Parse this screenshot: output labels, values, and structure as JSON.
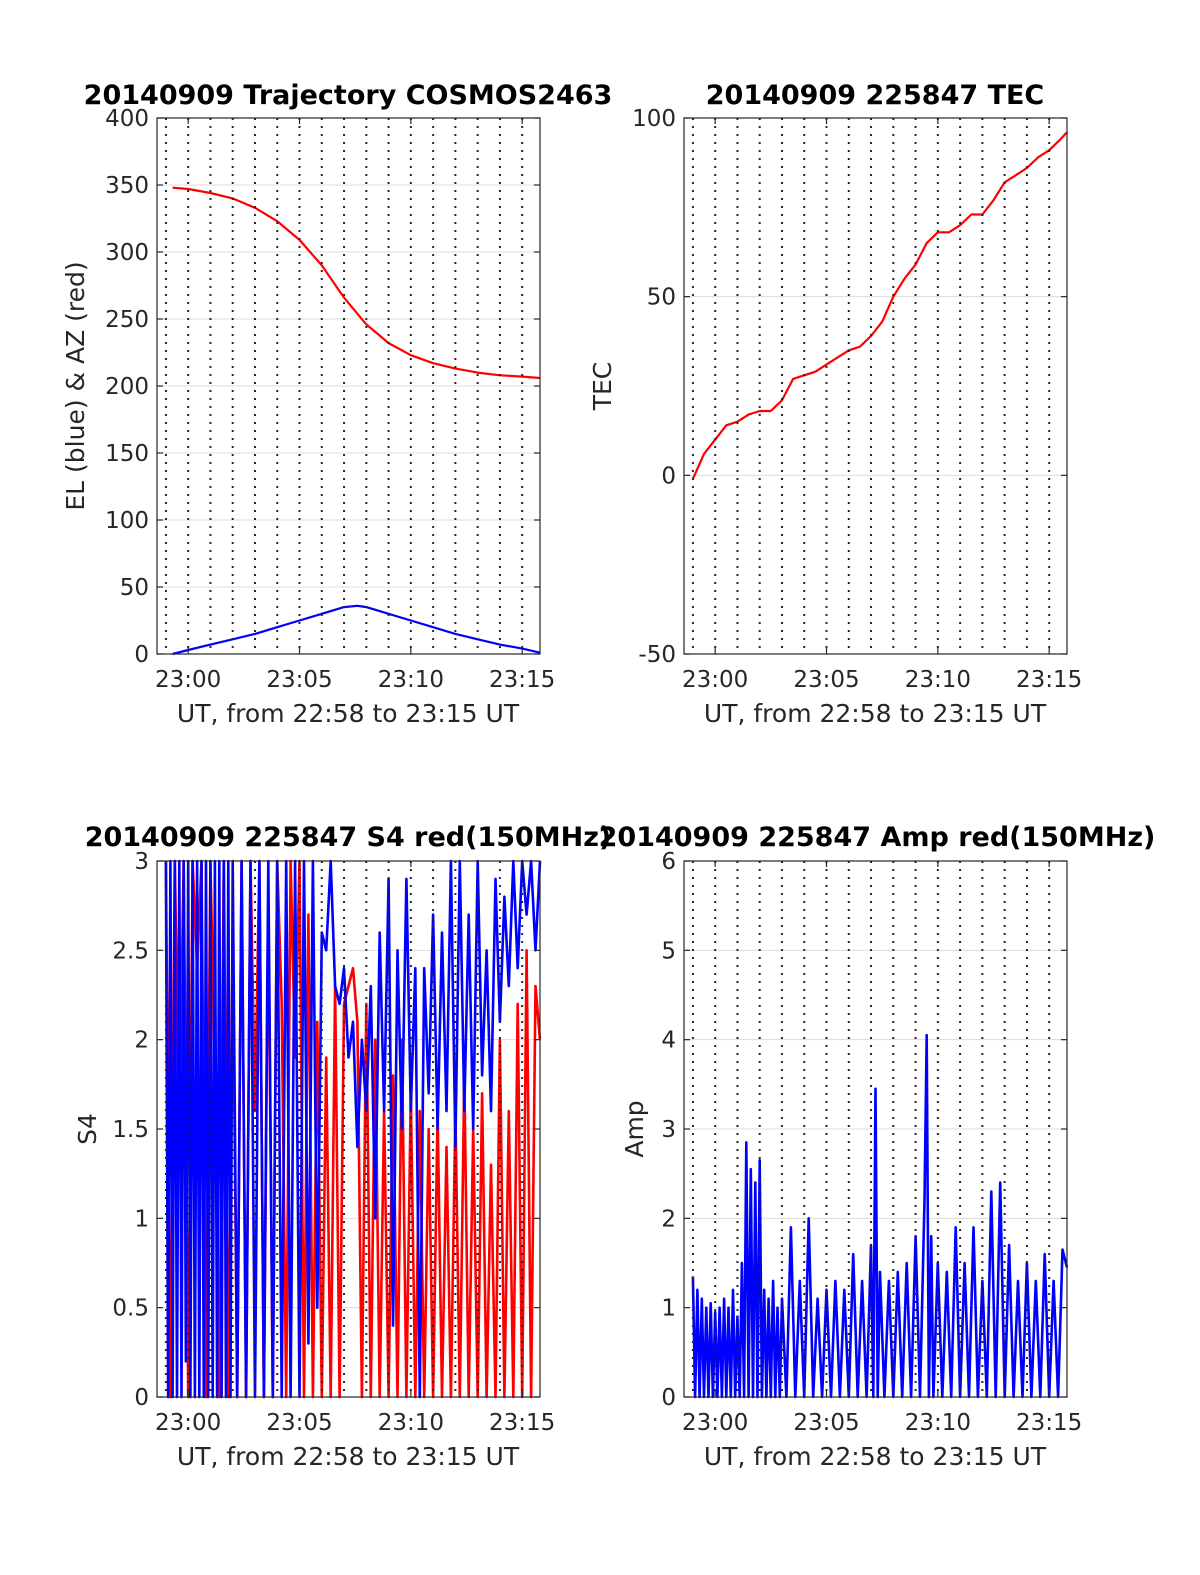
{
  "chart_data": [
    {
      "id": "p1",
      "type": "line",
      "title": "20140909 Trajectory COSMOS2463",
      "xlabel": "UT, from 22:58 to 23:15 UT",
      "ylabel": "EL (blue) & AZ (red)",
      "xlim_minutes": [
        -1.4,
        15.8
      ],
      "ylim": [
        0,
        400
      ],
      "x_tick_minutes": [
        0,
        5,
        10,
        15
      ],
      "x_tick_labels": [
        "23:00",
        "23:05",
        "23:10",
        "23:15"
      ],
      "y_ticks": [
        0,
        50,
        100,
        150,
        200,
        250,
        300,
        350,
        400
      ],
      "grid": true,
      "series": [
        {
          "color": "#ff0000",
          "x_minutes": [
            -0.7,
            0,
            1,
            2,
            3,
            4,
            5,
            6,
            7,
            8,
            9,
            10,
            11,
            12,
            13,
            14,
            15,
            15.8
          ],
          "values": [
            348,
            347,
            344,
            340,
            333,
            323,
            309,
            290,
            266,
            246,
            232,
            223,
            217,
            213,
            210,
            208,
            207,
            206
          ]
        },
        {
          "color": "#0000ff",
          "x_minutes": [
            -0.7,
            0,
            1,
            2,
            3,
            4,
            5,
            6,
            7,
            7.6,
            8,
            9,
            10,
            11,
            12,
            13,
            14,
            15,
            15.8
          ],
          "values": [
            0,
            3,
            7,
            11,
            15,
            20,
            25,
            30,
            35,
            36,
            35,
            30,
            25,
            20,
            15,
            11,
            7,
            4,
            1
          ]
        }
      ]
    },
    {
      "id": "p2",
      "type": "line",
      "title": "20140909 225847 TEC",
      "xlabel": "UT, from 22:58 to 23:15 UT",
      "ylabel": "TEC",
      "xlim_minutes": [
        -1.4,
        15.8
      ],
      "ylim": [
        -50,
        100
      ],
      "x_tick_minutes": [
        0,
        5,
        10,
        15
      ],
      "x_tick_labels": [
        "23:00",
        "23:05",
        "23:10",
        "23:15"
      ],
      "y_ticks": [
        -50,
        0,
        50,
        100
      ],
      "grid": true,
      "series": [
        {
          "color": "#ff0000",
          "x_minutes": [
            -1.0,
            -0.5,
            0,
            0.5,
            1,
            1.5,
            2,
            2.5,
            3,
            3.5,
            4,
            4.5,
            5,
            5.5,
            6,
            6.5,
            7,
            7.5,
            8,
            8.5,
            9,
            9.5,
            10,
            10.5,
            11,
            11.5,
            12,
            12.5,
            13,
            13.5,
            14,
            14.5,
            15,
            15.5,
            15.8
          ],
          "values": [
            -1,
            6,
            10,
            14,
            15,
            17,
            18,
            18,
            21,
            27,
            28,
            29,
            31,
            33,
            35,
            36,
            39,
            43,
            50,
            55,
            59,
            65,
            68,
            68,
            70,
            73,
            73,
            77,
            82,
            84,
            86,
            89,
            91,
            94,
            96
          ]
        }
      ]
    },
    {
      "id": "p3",
      "type": "line",
      "title": "20140909 225847 S4 red(150MHz)",
      "xlabel": "UT, from 22:58 to 23:15 UT",
      "ylabel": "S4",
      "xlim_minutes": [
        -1.4,
        15.8
      ],
      "ylim": [
        0,
        3
      ],
      "x_tick_minutes": [
        0,
        5,
        10,
        15
      ],
      "x_tick_labels": [
        "23:00",
        "23:05",
        "23:10",
        "23:15"
      ],
      "y_ticks": [
        0,
        0.5,
        1,
        1.5,
        2,
        2.5,
        3
      ],
      "grid": true,
      "series": [
        {
          "color": "#ff0000",
          "x_minutes": [
            -1.0,
            -0.8,
            -0.6,
            -0.4,
            -0.2,
            0.0,
            0.2,
            0.4,
            0.6,
            0.8,
            1.0,
            1.2,
            1.4,
            1.6,
            1.8,
            2.0,
            2.2,
            2.4,
            2.6,
            2.8,
            3.0,
            3.2,
            3.4,
            3.6,
            3.8,
            4.0,
            4.2,
            4.4,
            4.6,
            4.8,
            5.0,
            5.2,
            5.4,
            5.6,
            5.8,
            6.0,
            6.2,
            6.4,
            6.6,
            6.8,
            7.0,
            7.2,
            7.4,
            7.6,
            7.8,
            8.0,
            8.2,
            8.4,
            8.6,
            8.8,
            9.0,
            9.2,
            9.4,
            9.6,
            9.8,
            10.0,
            10.2,
            10.4,
            10.6,
            10.8,
            11.0,
            11.2,
            11.4,
            11.6,
            11.8,
            12.0,
            12.2,
            12.4,
            12.6,
            12.8,
            13.0,
            13.2,
            13.4,
            13.6,
            13.8,
            14.0,
            14.2,
            14.4,
            14.6,
            14.8,
            15.0,
            15.2,
            15.4,
            15.6,
            15.8
          ],
          "values": [
            3.0,
            0.0,
            3.0,
            1.5,
            3.0,
            0.0,
            3.0,
            2.4,
            3.0,
            0.0,
            3.0,
            1.8,
            0.0,
            3.0,
            0.0,
            2.6,
            0.0,
            3.0,
            0.0,
            3.0,
            1.6,
            3.0,
            0.0,
            2.8,
            0.0,
            3.0,
            2.2,
            0.0,
            3.0,
            1.9,
            3.0,
            0.0,
            2.7,
            0.0,
            2.1,
            0.0,
            1.9,
            0.0,
            2.3,
            0.0,
            2.2,
            2.3,
            2.4,
            2.1,
            0.0,
            2.2,
            0.0,
            2.0,
            0.0,
            1.6,
            0.0,
            1.8,
            0.0,
            2.0,
            0.0,
            1.7,
            0.0,
            1.6,
            0.0,
            1.5,
            0.0,
            1.6,
            0.0,
            1.4,
            0.0,
            1.6,
            0.0,
            1.8,
            0.0,
            1.5,
            0.0,
            1.7,
            0.0,
            1.3,
            0.0,
            2.0,
            0.0,
            1.6,
            0.0,
            2.2,
            0.0,
            2.5,
            0.0,
            2.3,
            2.0
          ]
        },
        {
          "color": "#0000ff",
          "x_minutes": [
            -1.0,
            -0.9,
            -0.8,
            -0.7,
            -0.6,
            -0.5,
            -0.4,
            -0.3,
            -0.2,
            -0.1,
            0.0,
            0.1,
            0.2,
            0.3,
            0.4,
            0.5,
            0.6,
            0.7,
            0.8,
            0.9,
            1.0,
            1.1,
            1.2,
            1.3,
            1.4,
            1.5,
            1.6,
            1.7,
            1.8,
            1.9,
            2.0,
            2.2,
            2.4,
            2.6,
            2.8,
            3.0,
            3.2,
            3.4,
            3.6,
            3.8,
            4.0,
            4.2,
            4.4,
            4.6,
            4.8,
            5.0,
            5.2,
            5.4,
            5.6,
            5.8,
            6.0,
            6.2,
            6.4,
            6.6,
            6.8,
            7.0,
            7.2,
            7.4,
            7.6,
            7.8,
            8.0,
            8.2,
            8.4,
            8.6,
            8.8,
            9.0,
            9.2,
            9.4,
            9.6,
            9.8,
            10.0,
            10.2,
            10.4,
            10.6,
            10.8,
            11.0,
            11.2,
            11.4,
            11.6,
            11.8,
            12.0,
            12.2,
            12.4,
            12.6,
            12.8,
            13.0,
            13.2,
            13.4,
            13.6,
            13.8,
            14.0,
            14.2,
            14.4,
            14.6,
            14.8,
            15.0,
            15.2,
            15.4,
            15.6,
            15.8
          ],
          "values": [
            3.0,
            0.0,
            3.0,
            0.0,
            3.0,
            0.0,
            3.0,
            0.0,
            3.0,
            0.2,
            3.0,
            0.0,
            3.0,
            0.0,
            3.0,
            0.0,
            3.0,
            0.0,
            3.0,
            0.0,
            3.0,
            0.0,
            3.0,
            0.0,
            3.0,
            0.0,
            3.0,
            0.0,
            3.0,
            0.0,
            3.0,
            0.0,
            3.0,
            0.0,
            3.0,
            0.0,
            3.0,
            0.0,
            3.0,
            0.0,
            3.0,
            0.0,
            3.0,
            0.0,
            3.0,
            0.0,
            3.0,
            0.3,
            3.0,
            0.5,
            2.6,
            2.5,
            3.0,
            2.3,
            2.2,
            2.4,
            1.9,
            2.1,
            1.4,
            2.0,
            1.6,
            2.3,
            1.0,
            2.6,
            1.6,
            2.9,
            0.4,
            2.5,
            1.5,
            2.9,
            1.6,
            2.4,
            0.0,
            2.4,
            1.7,
            2.7,
            1.5,
            2.6,
            1.6,
            3.0,
            1.4,
            3.0,
            1.6,
            2.7,
            1.5,
            3.0,
            1.8,
            2.5,
            1.6,
            2.9,
            2.1,
            2.8,
            2.3,
            3.0,
            2.4,
            3.0,
            2.7,
            3.0,
            2.5,
            3.0
          ]
        }
      ]
    },
    {
      "id": "p4",
      "type": "line",
      "title": "20140909 225847 Amp red(150MHz)",
      "xlabel": "UT, from 22:58 to 23:15 UT",
      "ylabel": "Amp",
      "xlim_minutes": [
        -1.4,
        15.8
      ],
      "ylim": [
        0,
        6
      ],
      "x_tick_minutes": [
        0,
        5,
        10,
        15
      ],
      "x_tick_labels": [
        "23:00",
        "23:05",
        "23:10",
        "23:15"
      ],
      "y_ticks": [
        0,
        1,
        2,
        3,
        4,
        5,
        6
      ],
      "grid": true,
      "series": [
        {
          "color": "#0000ff",
          "x_minutes": [
            -1.0,
            -0.9,
            -0.8,
            -0.7,
            -0.6,
            -0.5,
            -0.4,
            -0.3,
            -0.2,
            -0.1,
            0.0,
            0.1,
            0.2,
            0.3,
            0.4,
            0.5,
            0.6,
            0.7,
            0.8,
            0.9,
            1.0,
            1.1,
            1.2,
            1.3,
            1.4,
            1.5,
            1.6,
            1.7,
            1.8,
            1.9,
            2.0,
            2.1,
            2.2,
            2.3,
            2.4,
            2.5,
            2.6,
            2.7,
            2.8,
            2.9,
            3.0,
            3.2,
            3.4,
            3.6,
            3.8,
            4.0,
            4.2,
            4.4,
            4.6,
            4.8,
            5.0,
            5.2,
            5.4,
            5.6,
            5.8,
            6.0,
            6.2,
            6.4,
            6.6,
            6.8,
            7.0,
            7.1,
            7.2,
            7.3,
            7.4,
            7.6,
            7.8,
            8.0,
            8.2,
            8.4,
            8.6,
            8.8,
            9.0,
            9.2,
            9.4,
            9.5,
            9.6,
            9.7,
            9.8,
            10.0,
            10.2,
            10.4,
            10.6,
            10.8,
            11.0,
            11.2,
            11.4,
            11.6,
            11.8,
            12.0,
            12.2,
            12.4,
            12.6,
            12.8,
            13.0,
            13.2,
            13.4,
            13.6,
            13.8,
            14.0,
            14.2,
            14.4,
            14.6,
            14.8,
            15.0,
            15.2,
            15.4,
            15.6,
            15.8
          ],
          "values": [
            1.35,
            0.0,
            1.2,
            0.0,
            1.1,
            0.0,
            1.0,
            0.0,
            1.05,
            0.0,
            0.95,
            0.0,
            1.0,
            0.0,
            1.1,
            0.0,
            1.0,
            0.0,
            1.2,
            0.0,
            0.9,
            0.0,
            1.5,
            0.0,
            2.85,
            0.0,
            2.55,
            0.0,
            2.4,
            0.0,
            2.65,
            0.0,
            1.2,
            0.0,
            1.1,
            0.0,
            1.3,
            0.0,
            1.0,
            0.0,
            1.1,
            0.0,
            1.9,
            0.0,
            1.3,
            0.0,
            2.0,
            0.0,
            1.1,
            0.0,
            1.2,
            0.0,
            1.3,
            0.0,
            1.2,
            0.0,
            1.6,
            0.0,
            1.3,
            0.0,
            1.7,
            0.0,
            3.45,
            0.0,
            1.4,
            0.0,
            1.3,
            0.0,
            1.4,
            0.0,
            1.5,
            0.0,
            1.8,
            0.0,
            2.2,
            4.05,
            0.0,
            1.8,
            0.0,
            1.5,
            0.0,
            1.4,
            0.0,
            1.9,
            0.0,
            1.5,
            0.0,
            1.9,
            0.0,
            1.3,
            0.0,
            2.3,
            0.0,
            2.4,
            0.0,
            1.7,
            0.0,
            1.3,
            0.0,
            1.5,
            0.0,
            1.3,
            0.0,
            1.6,
            0.0,
            1.3,
            0.0,
            1.65,
            1.45
          ]
        },
        {
          "color": "#ff0000",
          "x_minutes": [],
          "values": []
        }
      ]
    }
  ]
}
